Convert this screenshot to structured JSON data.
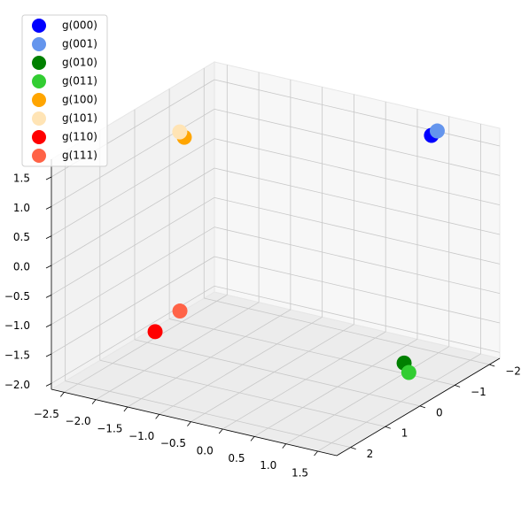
{
  "chart_data": {
    "type": "scatter3d",
    "series": [
      {
        "name": "g(000)",
        "color": "#0000ff",
        "x": [
          0.98
        ],
        "y": [
          -1.83
        ],
        "z": [
          1.64
        ]
      },
      {
        "name": "g(001)",
        "color": "#6495ed",
        "x": [
          0.94
        ],
        "y": [
          -2.07
        ],
        "z": [
          1.62
        ]
      },
      {
        "name": "g(010)",
        "color": "#008000",
        "x": [
          1.32
        ],
        "y": [
          -0.42
        ],
        "z": [
          -1.64
        ]
      },
      {
        "name": "g(011)",
        "color": "#32cd32",
        "x": [
          1.52
        ],
        "y": [
          -0.19
        ],
        "z": [
          -1.67
        ]
      },
      {
        "name": "g(100)",
        "color": "#ffa500",
        "x": [
          -1.89
        ],
        "y": [
          0.05
        ],
        "z": [
          1.55
        ]
      },
      {
        "name": "g(101)",
        "color": "#ffe4b5",
        "x": [
          -1.83
        ],
        "y": [
          0.29
        ],
        "z": [
          1.74
        ]
      },
      {
        "name": "g(110)",
        "color": "#ff0000",
        "x": [
          -2.35
        ],
        "y": [
          0.05
        ],
        "z": [
          -1.86
        ]
      },
      {
        "name": "g(111)",
        "color": "#ff6347",
        "x": [
          -2.09
        ],
        "y": [
          -0.19
        ],
        "z": [
          -1.53
        ]
      }
    ],
    "xlim": [
      -2.7,
      1.8
    ],
    "ylim": [
      -2.3,
      2.4
    ],
    "zlim": [
      -2.1,
      1.8
    ],
    "xticks": [
      {
        "value": -2.5,
        "label": "−2.5"
      },
      {
        "value": -2.0,
        "label": "−2.0"
      },
      {
        "value": -1.5,
        "label": "−1.5"
      },
      {
        "value": -1.0,
        "label": "−1.0"
      },
      {
        "value": -0.5,
        "label": "−0.5"
      },
      {
        "value": 0,
        "label": "0.0"
      },
      0.5,
      {
        "value": 1,
        "label": "1.0"
      },
      1.5
    ],
    "yticks": [
      {
        "value": -2,
        "label": "−2"
      },
      {
        "value": -1,
        "label": "−1"
      },
      0,
      1,
      2
    ],
    "zticks": [
      {
        "value": -2.0,
        "label": "−2.0"
      },
      {
        "value": -1.5,
        "label": "−1.5"
      },
      {
        "value": -1.0,
        "label": "−1.0"
      },
      {
        "value": -0.5,
        "label": "−0.5"
      },
      {
        "value": 0,
        "label": "0.0"
      },
      0.5,
      {
        "value": 1,
        "label": "1.0"
      },
      1.5
    ],
    "grid": true,
    "legend": "upper left"
  }
}
